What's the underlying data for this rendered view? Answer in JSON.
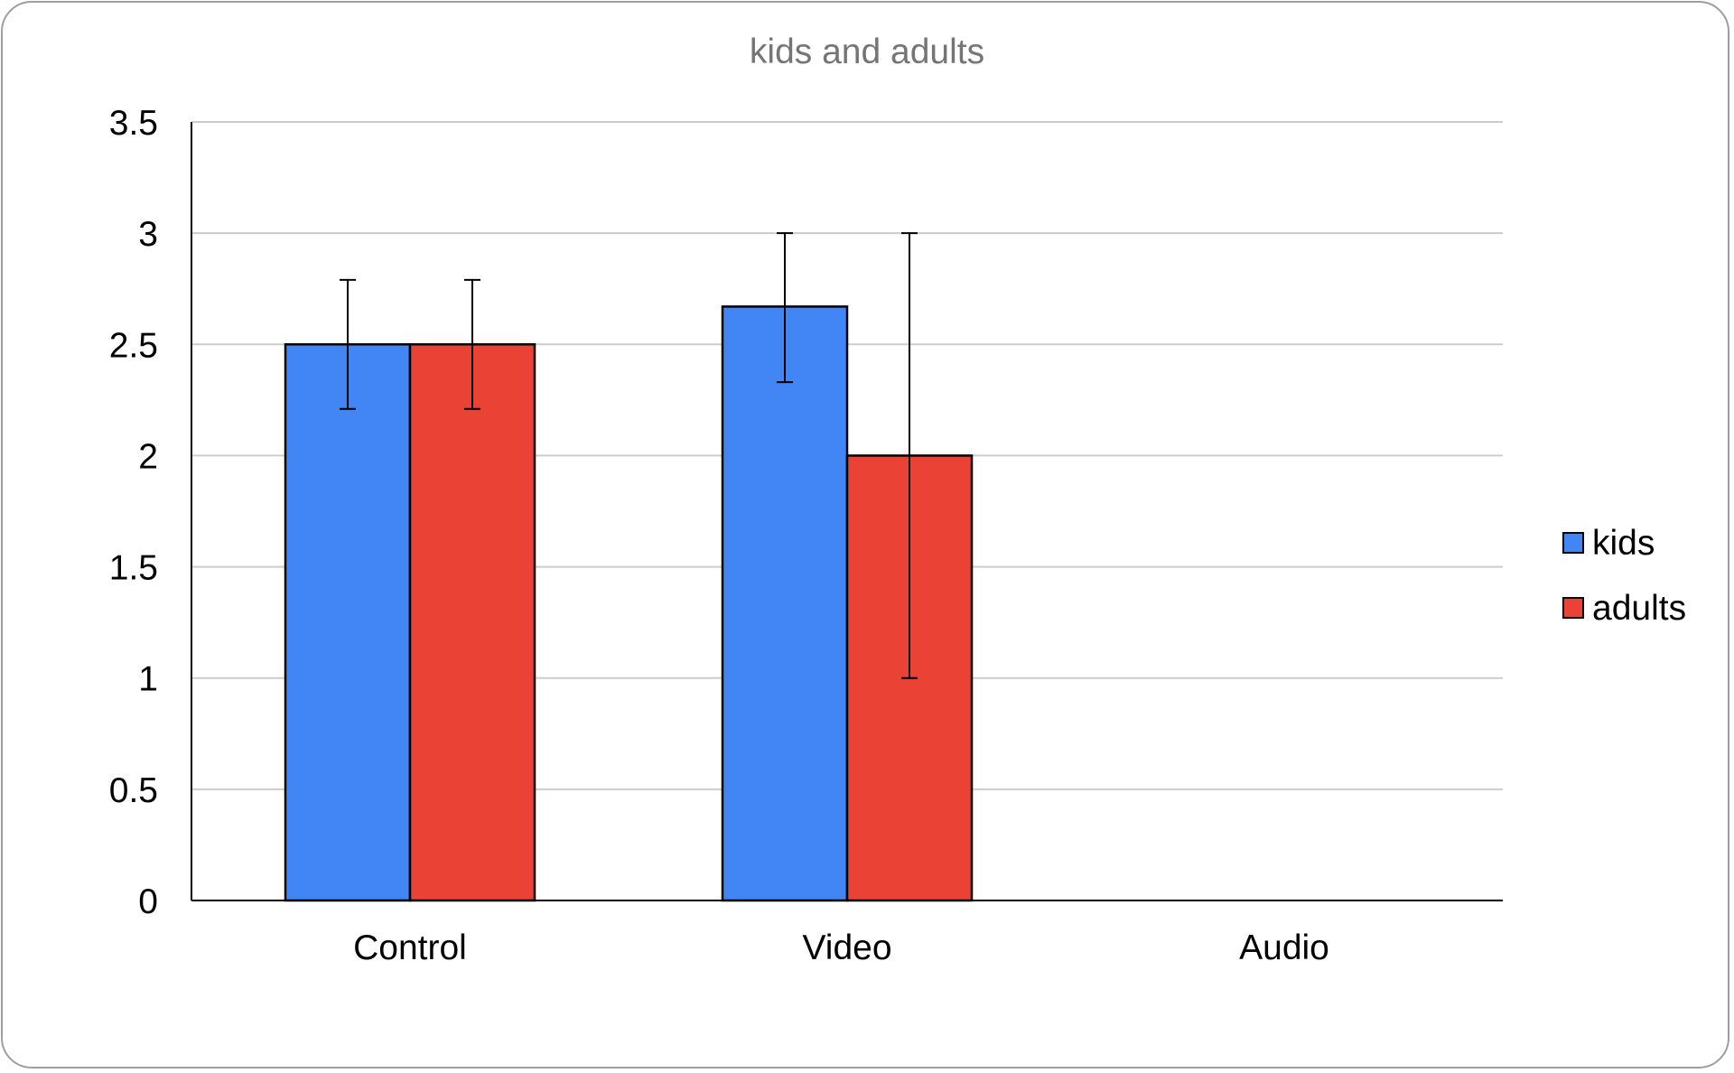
{
  "chart_data": {
    "type": "bar",
    "title": "kids and adults",
    "xlabel": "",
    "ylabel": "",
    "categories": [
      "Control",
      "Video",
      "Audio"
    ],
    "ylim": [
      0,
      3.5
    ],
    "yticks": [
      "0",
      "0.5",
      "1",
      "1.5",
      "2",
      "2.5",
      "3",
      "3.5"
    ],
    "grid": true,
    "legend_position": "right",
    "series": [
      {
        "name": "kids",
        "color": "#4285f4",
        "values": [
          2.5,
          2.67,
          null
        ],
        "error_low": [
          2.21,
          2.33,
          null
        ],
        "error_high": [
          2.79,
          3.0,
          null
        ]
      },
      {
        "name": "adults",
        "color": "#ea4335",
        "values": [
          2.5,
          2.0,
          null
        ],
        "error_low": [
          2.21,
          1.0,
          null
        ],
        "error_high": [
          2.79,
          3.0,
          null
        ]
      }
    ]
  }
}
